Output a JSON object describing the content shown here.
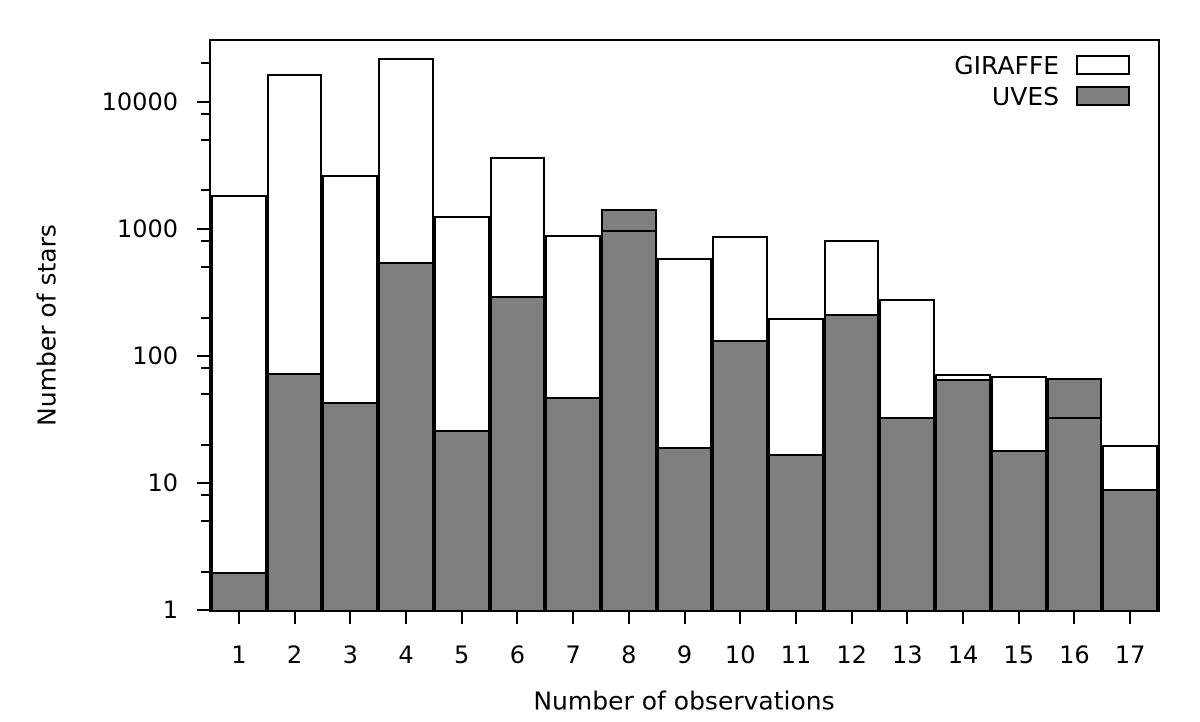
{
  "chart_data": {
    "type": "bar",
    "title": "",
    "xlabel": "Number of observations",
    "ylabel": "Number of stars",
    "y_scale": "log",
    "ylim": [
      1,
      30000
    ],
    "grid": "off",
    "legend_position": "top-right-inside",
    "categories": [
      "1",
      "2",
      "3",
      "4",
      "5",
      "6",
      "7",
      "8",
      "9",
      "10",
      "11",
      "12",
      "13",
      "14",
      "15",
      "16",
      "17"
    ],
    "y_major_ticks": [
      1,
      10,
      100,
      1000,
      10000
    ],
    "y_major_tick_labels": [
      "1",
      "10",
      "100",
      "1000",
      "10000"
    ],
    "y_minor_tick_mantissas": [
      2,
      5,
      8
    ],
    "series": [
      {
        "name": "GIRAFFE",
        "style": "open-box",
        "fill": "#ffffff",
        "edge": "#000000",
        "values": [
          1850,
          16600,
          2650,
          22100,
          1270,
          3700,
          890,
          975,
          585,
          880,
          200,
          820,
          278,
          72,
          69,
          33,
          20
        ]
      },
      {
        "name": "UVES",
        "style": "filled-box",
        "fill": "#7f7f7f",
        "edge": "#000000",
        "values": [
          2,
          73,
          43,
          547,
          26,
          298,
          47,
          1430,
          19,
          132,
          17,
          215,
          33,
          66,
          18,
          67,
          9
        ]
      }
    ]
  },
  "colors": {
    "background": "#ffffff",
    "axis": "#000000",
    "text": "#000000",
    "uves_gray": "#7f7f7f"
  }
}
